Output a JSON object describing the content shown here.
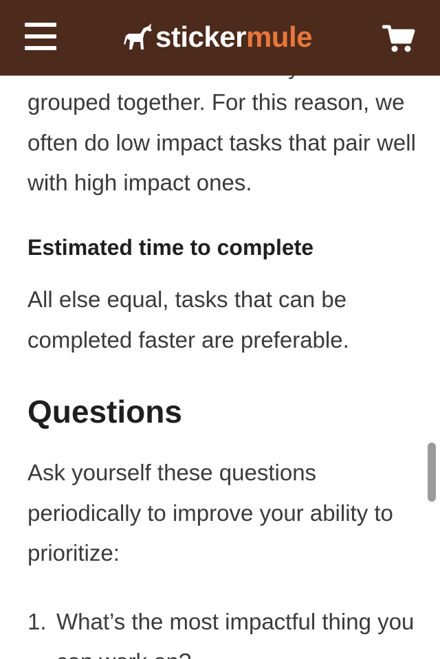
{
  "header": {
    "menu_icon": "hamburger-menu-icon",
    "logo_icon": "mule-icon",
    "logo_text_a": "sticker",
    "logo_text_b": "mule",
    "cart_icon": "shopping-cart-icon",
    "background_color": "#4c2a1c",
    "accent_color": "#e8773c"
  },
  "article": {
    "partial_line": "tasks that can be efficiently",
    "paragraph_1": "grouped together. For this reason, we often do low impact tasks that pair well with high impact ones.",
    "subheading": "Estimated time to complete",
    "paragraph_2": "All else equal, tasks that can be completed faster are preferable.",
    "heading": "Questions",
    "paragraph_3": "Ask yourself these questions periodically to improve your ability to prioritize:",
    "list": [
      {
        "number": "1.",
        "text": "What’s the most impactful thing you can work on?"
      }
    ]
  }
}
